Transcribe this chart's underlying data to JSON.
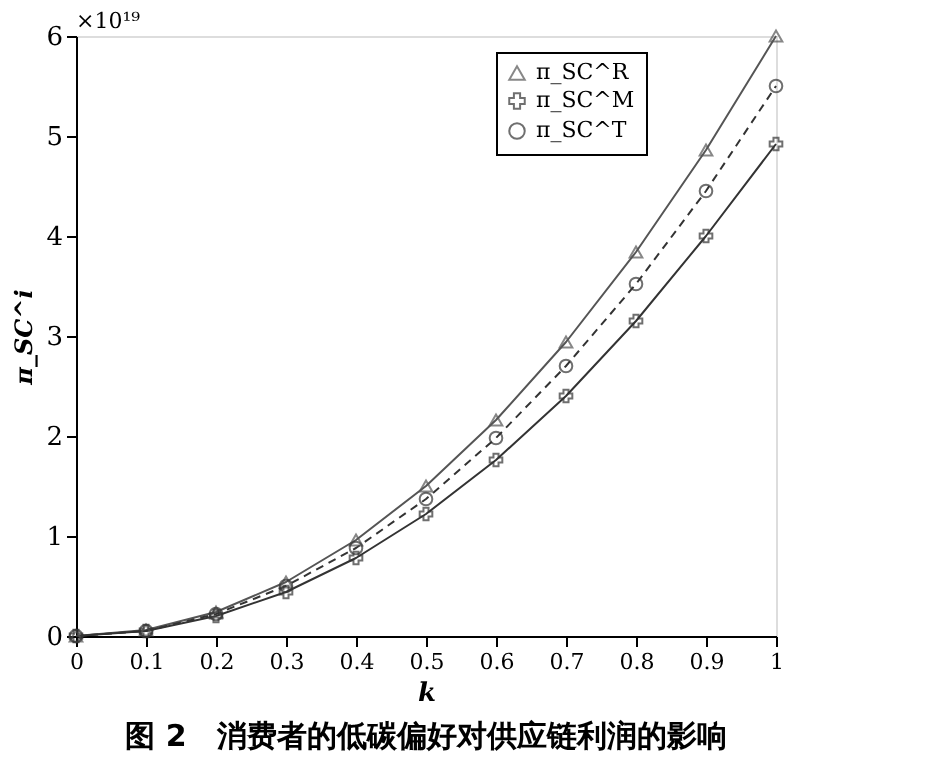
{
  "chart_data": {
    "type": "line",
    "title": "图 2　消费者的低碳偏好对供应链利润的影响",
    "xlabel": "k",
    "ylabel": "π_SC^i",
    "x": [
      0,
      0.1,
      0.2,
      0.3,
      0.4,
      0.5,
      0.6,
      0.7,
      0.8,
      0.9,
      1
    ],
    "series": [
      {
        "name": "π_SC^R",
        "color": "#555555",
        "marker": "triangle",
        "line_style": "solid",
        "values": [
          0,
          0.06,
          0.24,
          0.54,
          0.96,
          1.5,
          2.16,
          2.94,
          3.84,
          4.86,
          6.0
        ]
      },
      {
        "name": "π_SC^M",
        "color": "#333333",
        "marker": "cross",
        "line_style": "solid",
        "values": [
          0,
          0.05,
          0.2,
          0.44,
          0.78,
          1.22,
          1.76,
          2.4,
          3.15,
          4.0,
          4.92
        ]
      },
      {
        "name": "π_SC^T",
        "color": "#333333",
        "marker": "circle",
        "line_style": "dashed",
        "values": [
          0,
          0.05,
          0.22,
          0.5,
          0.88,
          1.37,
          1.98,
          2.7,
          3.52,
          4.45,
          5.5
        ]
      }
    ],
    "annotations": [
      "×10¹⁹"
    ],
    "xlim": [
      0,
      1
    ],
    "xticks": [
      0,
      0.1,
      0.2,
      0.3,
      0.4,
      0.5,
      0.6,
      0.7,
      0.8,
      0.9,
      1
    ],
    "ylim": [
      0,
      6
    ],
    "yticks": [
      0,
      1,
      2,
      3,
      4,
      5,
      6
    ],
    "grid": false,
    "legend": "top right"
  }
}
